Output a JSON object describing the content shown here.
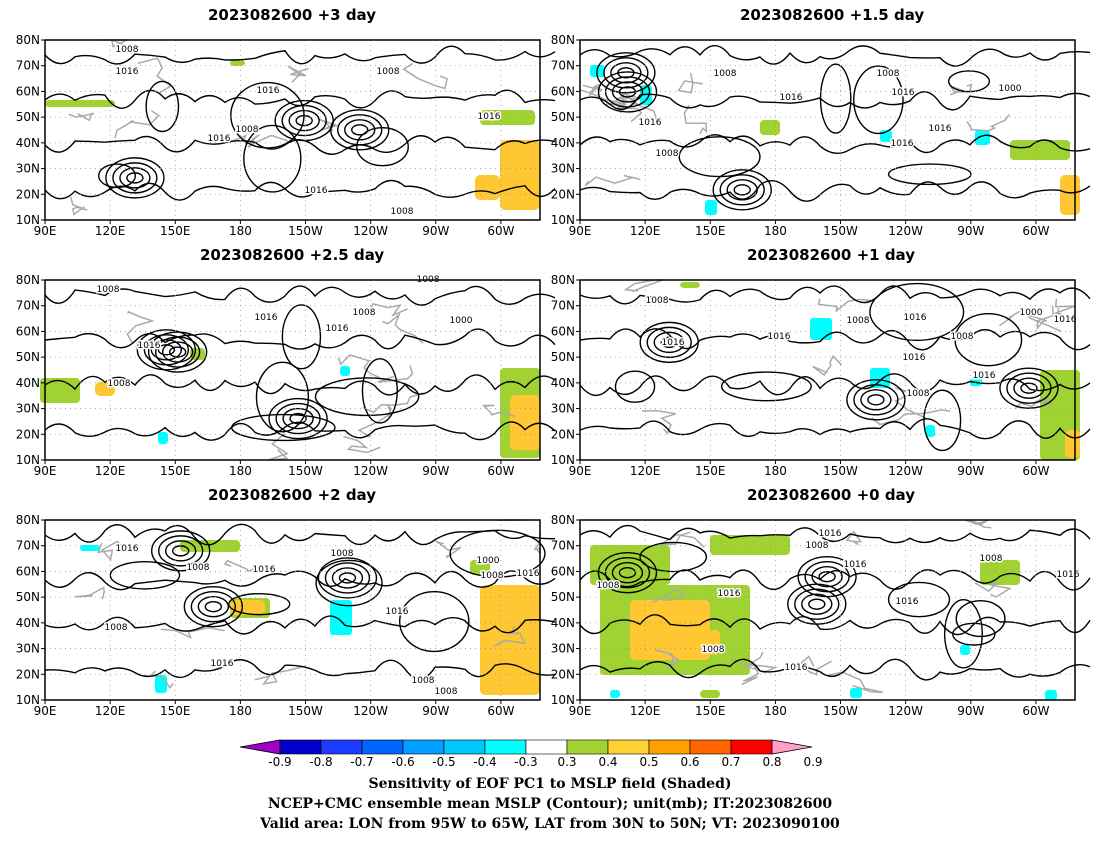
{
  "panels": [
    {
      "title": "2023082600  +3 day",
      "labels": [
        [
          "1008",
          127,
          52
        ],
        [
          "1016",
          127,
          74
        ],
        [
          "1008",
          388,
          74
        ],
        [
          "1016",
          268,
          93
        ],
        [
          "1008",
          247,
          132
        ],
        [
          "1016",
          219,
          141
        ],
        [
          "1016",
          489,
          119
        ],
        [
          "1016",
          316,
          193
        ],
        [
          "1008",
          402,
          214
        ]
      ],
      "green": [
        [
          45,
          100,
          70,
          7
        ],
        [
          230,
          60,
          15,
          6
        ],
        [
          480,
          110,
          55,
          15
        ]
      ],
      "orange": [
        [
          500,
          140,
          40,
          70
        ],
        [
          475,
          175,
          25,
          25
        ]
      ],
      "cyan": []
    },
    {
      "title": "2023082600  +1.5 day",
      "labels": [
        [
          "1008",
          725,
          76
        ],
        [
          "1008",
          888,
          76
        ],
        [
          "1016",
          903,
          95
        ],
        [
          "1000",
          1010,
          91
        ],
        [
          "1016",
          791,
          100
        ],
        [
          "1016",
          650,
          125
        ],
        [
          "1016",
          940,
          131
        ],
        [
          "1016",
          902,
          146
        ],
        [
          "1008",
          667,
          156
        ]
      ],
      "green": [
        [
          1010,
          140,
          60,
          20
        ],
        [
          760,
          120,
          20,
          15
        ]
      ],
      "orange": [
        [
          1060,
          175,
          20,
          40
        ]
      ],
      "cyan": [
        [
          590,
          65,
          15,
          12
        ],
        [
          640,
          85,
          12,
          20
        ],
        [
          880,
          130,
          12,
          12
        ],
        [
          975,
          130,
          15,
          15
        ],
        [
          705,
          200,
          12,
          15
        ]
      ]
    },
    {
      "title": "2023082600  +2.5 day",
      "labels": [
        [
          "1008",
          108,
          292
        ],
        [
          "1016",
          266,
          320
        ],
        [
          "1008",
          364,
          315
        ],
        [
          "1016",
          337,
          331
        ],
        [
          "1016",
          149,
          348
        ],
        [
          "1000",
          461,
          323
        ],
        [
          "1008",
          428,
          282
        ],
        [
          "1008",
          119,
          386
        ]
      ],
      "green": [
        [
          40,
          378,
          40,
          25
        ],
        [
          190,
          348,
          15,
          12
        ],
        [
          500,
          368,
          40,
          90
        ]
      ],
      "orange": [
        [
          510,
          395,
          30,
          55
        ],
        [
          95,
          382,
          20,
          14
        ]
      ],
      "cyan": [
        [
          340,
          366,
          10,
          10
        ],
        [
          158,
          432,
          10,
          12
        ]
      ]
    },
    {
      "title": "2023082600  +1 day",
      "labels": [
        [
          "1008",
          657,
          303
        ],
        [
          "1016",
          915,
          320
        ],
        [
          "1016",
          1065,
          322
        ],
        [
          "1000",
          1031,
          315
        ],
        [
          "1008",
          858,
          323
        ],
        [
          "1016",
          779,
          339
        ],
        [
          "1008",
          962,
          339
        ],
        [
          "1016",
          673,
          345
        ],
        [
          "1016",
          914,
          360
        ],
        [
          "1016",
          984,
          378
        ],
        [
          "1008",
          918,
          396
        ]
      ],
      "green": [
        [
          1040,
          370,
          40,
          90
        ],
        [
          680,
          282,
          20,
          6
        ]
      ],
      "orange": [
        [
          1065,
          430,
          15,
          28
        ]
      ],
      "cyan": [
        [
          810,
          318,
          22,
          22
        ],
        [
          870,
          368,
          20,
          20
        ],
        [
          970,
          378,
          12,
          8
        ],
        [
          925,
          425,
          10,
          12
        ]
      ]
    },
    {
      "title": "2023082600  +2 day",
      "labels": [
        [
          "1016",
          127,
          551
        ],
        [
          "1008",
          342,
          556
        ],
        [
          "1008",
          198,
          570
        ],
        [
          "1016",
          264,
          572
        ],
        [
          "1000",
          488,
          563
        ],
        [
          "1008",
          492,
          578
        ],
        [
          "1016",
          528,
          576
        ],
        [
          "1016",
          397,
          614
        ],
        [
          "1008",
          116,
          630
        ],
        [
          "1016",
          222,
          666
        ],
        [
          "1008",
          423,
          683
        ],
        [
          "1008",
          446,
          694
        ]
      ],
      "green": [
        [
          180,
          540,
          60,
          12
        ],
        [
          230,
          598,
          40,
          20
        ],
        [
          470,
          560,
          20,
          15
        ]
      ],
      "orange": [
        [
          480,
          585,
          60,
          110
        ],
        [
          230,
          600,
          35,
          15
        ]
      ],
      "cyan": [
        [
          330,
          600,
          22,
          35
        ],
        [
          80,
          545,
          20,
          6
        ],
        [
          155,
          675,
          12,
          18
        ]
      ]
    },
    {
      "title": "2023082600  +0 day",
      "labels": [
        [
          "1016",
          830,
          536
        ],
        [
          "1008",
          817,
          548
        ],
        [
          "1016",
          855,
          567
        ],
        [
          "1008",
          991,
          561
        ],
        [
          "1016",
          1068,
          577
        ],
        [
          "1008",
          608,
          588
        ],
        [
          "1016",
          729,
          596
        ],
        [
          "1016",
          907,
          604
        ],
        [
          "1008",
          713,
          652
        ],
        [
          "1016",
          796,
          670
        ]
      ],
      "green": [
        [
          590,
          545,
          80,
          40
        ],
        [
          600,
          585,
          150,
          90
        ],
        [
          710,
          535,
          80,
          20
        ],
        [
          980,
          560,
          40,
          25
        ],
        [
          700,
          690,
          20,
          8
        ]
      ],
      "orange": [
        [
          630,
          600,
          80,
          60
        ],
        [
          690,
          630,
          30,
          25
        ]
      ],
      "cyan": [
        [
          850,
          688,
          12,
          10
        ],
        [
          960,
          645,
          10,
          10
        ],
        [
          1045,
          690,
          12,
          10
        ],
        [
          610,
          690,
          10,
          8
        ]
      ]
    }
  ],
  "lat_labels": [
    "80N",
    "70N",
    "60N",
    "50N",
    "40N",
    "30N",
    "20N",
    "10N"
  ],
  "lon_labels": [
    "90E",
    "120E",
    "150E",
    "180",
    "150W",
    "120W",
    "90W",
    "60W"
  ],
  "colorbar": {
    "ticks": [
      "-0.9",
      "-0.8",
      "-0.7",
      "-0.6",
      "-0.5",
      "-0.4",
      "-0.3",
      "0.3",
      "0.4",
      "0.5",
      "0.6",
      "0.7",
      "0.8",
      "0.9"
    ],
    "colors": [
      "#a000c8",
      "#0000c8",
      "#1e3cff",
      "#0064ff",
      "#00a0ff",
      "#00c8ff",
      "#00ffff",
      "#ffffff",
      "#a0d232",
      "#ffd232",
      "#ffa000",
      "#ff6400",
      "#ff0000",
      "#ffa0c8"
    ]
  },
  "caption": {
    "line1": "Sensitivity of EOF PC1 to MSLP field (Shaded)",
    "line2": "NCEP+CMC ensemble mean MSLP (Contour); unit(mb); IT:2023082600",
    "line3": "Valid area: LON from 95W to 65W, LAT from 30N to 50N; VT: 2023090100"
  }
}
